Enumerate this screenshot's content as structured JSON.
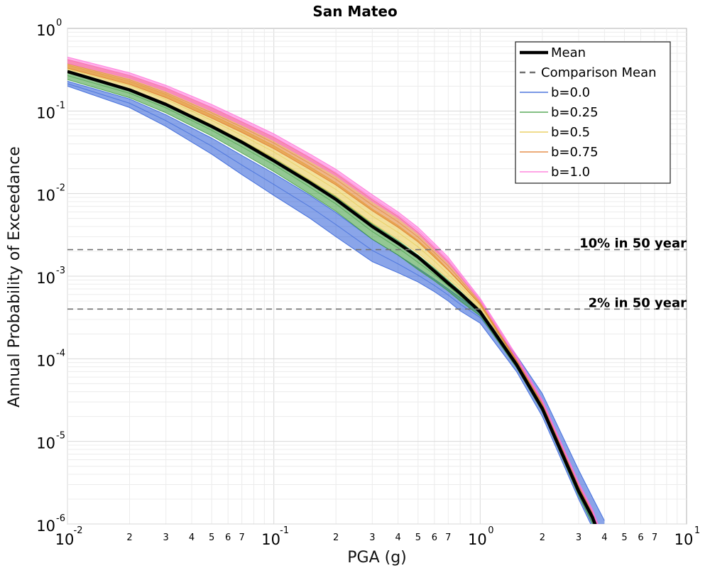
{
  "chart_data": {
    "type": "line",
    "title": "San Mateo",
    "xlabel": "PGA (g)",
    "ylabel": "Annual Probability of Exceedance",
    "xscale": "log",
    "yscale": "log",
    "xlim": [
      0.01,
      10
    ],
    "ylim": [
      1e-06,
      1
    ],
    "grid": true,
    "legend_position": "top-right",
    "x_major_ticks": [
      {
        "base": "10",
        "exp": "-2"
      },
      {
        "base": "10",
        "exp": "-1"
      },
      {
        "base": "10",
        "exp": "0"
      },
      {
        "base": "10",
        "exp": "1"
      }
    ],
    "y_major_ticks": [
      {
        "base": "10",
        "exp": "0"
      },
      {
        "base": "10",
        "exp": "-1"
      },
      {
        "base": "10",
        "exp": "-2"
      },
      {
        "base": "10",
        "exp": "-3"
      },
      {
        "base": "10",
        "exp": "-4"
      },
      {
        "base": "10",
        "exp": "-5"
      },
      {
        "base": "10",
        "exp": "-6"
      }
    ],
    "x_minor_tick_labels": [
      "2",
      "3",
      "4",
      "5",
      "6",
      "7"
    ],
    "x": [
      0.01,
      0.02,
      0.03,
      0.05,
      0.07,
      0.1,
      0.15,
      0.2,
      0.3,
      0.4,
      0.5,
      0.6,
      0.7,
      0.8,
      1.0,
      1.5,
      2.0,
      3.0,
      3.5,
      4.0
    ],
    "series": [
      {
        "name": "Mean",
        "color": "#000000",
        "style": "solid",
        "y": [
          0.3,
          0.18,
          0.12,
          0.065,
          0.042,
          0.025,
          0.0135,
          0.0085,
          0.004,
          0.0025,
          0.0017,
          0.00115,
          0.00082,
          0.00062,
          0.00037,
          8.5e-05,
          2.5e-05,
          2.5e-06,
          1.2e-06,
          5e-07
        ]
      },
      {
        "name": "b=0.0",
        "color": "#2a5bd7",
        "style": "band",
        "y_low": [
          0.2,
          0.11,
          0.065,
          0.03,
          0.017,
          0.0095,
          0.005,
          0.003,
          0.0015,
          0.0011,
          0.00085,
          0.00065,
          0.0005,
          0.00038,
          0.00027,
          7e-05,
          2e-05,
          2e-06,
          9e-07,
          4e-07
        ],
        "y_high": [
          0.23,
          0.14,
          0.09,
          0.047,
          0.029,
          0.0175,
          0.0095,
          0.0059,
          0.0028,
          0.0018,
          0.00125,
          0.00092,
          0.0007,
          0.00055,
          0.00037,
          0.00011,
          3.8e-05,
          4.5e-06,
          2.1e-06,
          1.1e-06
        ]
      },
      {
        "name": "b=0.25",
        "color": "#3a9a3a",
        "style": "band",
        "y_low": [
          0.24,
          0.145,
          0.095,
          0.05,
          0.031,
          0.0185,
          0.0098,
          0.0061,
          0.0028,
          0.0018,
          0.0012,
          0.00088,
          0.00066,
          0.0005,
          0.00033,
          7.8e-05,
          2.3e-05,
          2.2e-06,
          1e-06,
          4.5e-07
        ],
        "y_high": [
          0.3,
          0.185,
          0.125,
          0.068,
          0.044,
          0.027,
          0.0145,
          0.0092,
          0.0043,
          0.0027,
          0.0018,
          0.00125,
          0.00089,
          0.00066,
          0.00039,
          9e-05,
          2.7e-05,
          2.7e-06,
          1.3e-06,
          5.5e-07
        ]
      },
      {
        "name": "b=0.5",
        "color": "#e8c84a",
        "style": "band",
        "y_low": [
          0.29,
          0.18,
          0.12,
          0.066,
          0.043,
          0.027,
          0.0145,
          0.0093,
          0.0044,
          0.0028,
          0.0019,
          0.0013,
          0.00093,
          0.00069,
          0.0004,
          8.8e-05,
          2.6e-05,
          2.6e-06,
          1.2e-06,
          5e-07
        ],
        "y_high": [
          0.36,
          0.23,
          0.16,
          0.09,
          0.06,
          0.038,
          0.021,
          0.0135,
          0.0065,
          0.0041,
          0.0027,
          0.0018,
          0.0012,
          0.00085,
          0.00046,
          9.5e-05,
          2.8e-05,
          2.8e-06,
          1.3e-06,
          5.5e-07
        ]
      },
      {
        "name": "b=0.75",
        "color": "#e07b2a",
        "style": "band",
        "y_low": [
          0.33,
          0.21,
          0.145,
          0.082,
          0.055,
          0.035,
          0.0195,
          0.0127,
          0.0062,
          0.0039,
          0.0026,
          0.0017,
          0.00118,
          0.00083,
          0.00045,
          9.3e-05,
          2.7e-05,
          2.7e-06,
          1.3e-06,
          5.2e-07
        ],
        "y_high": [
          0.42,
          0.27,
          0.19,
          0.11,
          0.074,
          0.048,
          0.027,
          0.0175,
          0.0085,
          0.0053,
          0.0034,
          0.0022,
          0.0015,
          0.001,
          0.0005,
          0.0001,
          3e-05,
          3e-06,
          1.4e-06,
          5.8e-07
        ]
      },
      {
        "name": "b=1.0",
        "color": "#ff6fd8",
        "style": "band",
        "y_low": [
          0.38,
          0.25,
          0.175,
          0.1,
          0.068,
          0.044,
          0.025,
          0.0165,
          0.0081,
          0.0051,
          0.0033,
          0.0021,
          0.00145,
          0.00098,
          0.0005,
          0.0001,
          3e-05,
          3e-06,
          1.4e-06,
          5.8e-07
        ],
        "y_high": [
          0.45,
          0.29,
          0.205,
          0.12,
          0.081,
          0.053,
          0.03,
          0.0197,
          0.0097,
          0.006,
          0.0039,
          0.0025,
          0.0017,
          0.0011,
          0.00054,
          0.00011,
          3.2e-05,
          3.2e-06,
          1.5e-06,
          6.2e-07
        ]
      }
    ],
    "legend": [
      {
        "label": "Mean",
        "color": "#000000",
        "style": "solid-thick"
      },
      {
        "label": "Comparison Mean",
        "color": "#707070",
        "style": "dashed"
      },
      {
        "label": "b=0.0",
        "color": "#2a5bd7",
        "style": "solid"
      },
      {
        "label": "b=0.25",
        "color": "#3a9a3a",
        "style": "solid"
      },
      {
        "label": "b=0.5",
        "color": "#e8c84a",
        "style": "solid"
      },
      {
        "label": "b=0.75",
        "color": "#e07b2a",
        "style": "solid"
      },
      {
        "label": "b=1.0",
        "color": "#ff6fd8",
        "style": "solid"
      }
    ],
    "reference_lines": [
      {
        "label": "10% in 50 year",
        "y": 0.0021,
        "color": "#707070",
        "style": "dashed"
      },
      {
        "label": "2% in 50 year",
        "y": 0.0004,
        "color": "#707070",
        "style": "dashed"
      }
    ]
  }
}
